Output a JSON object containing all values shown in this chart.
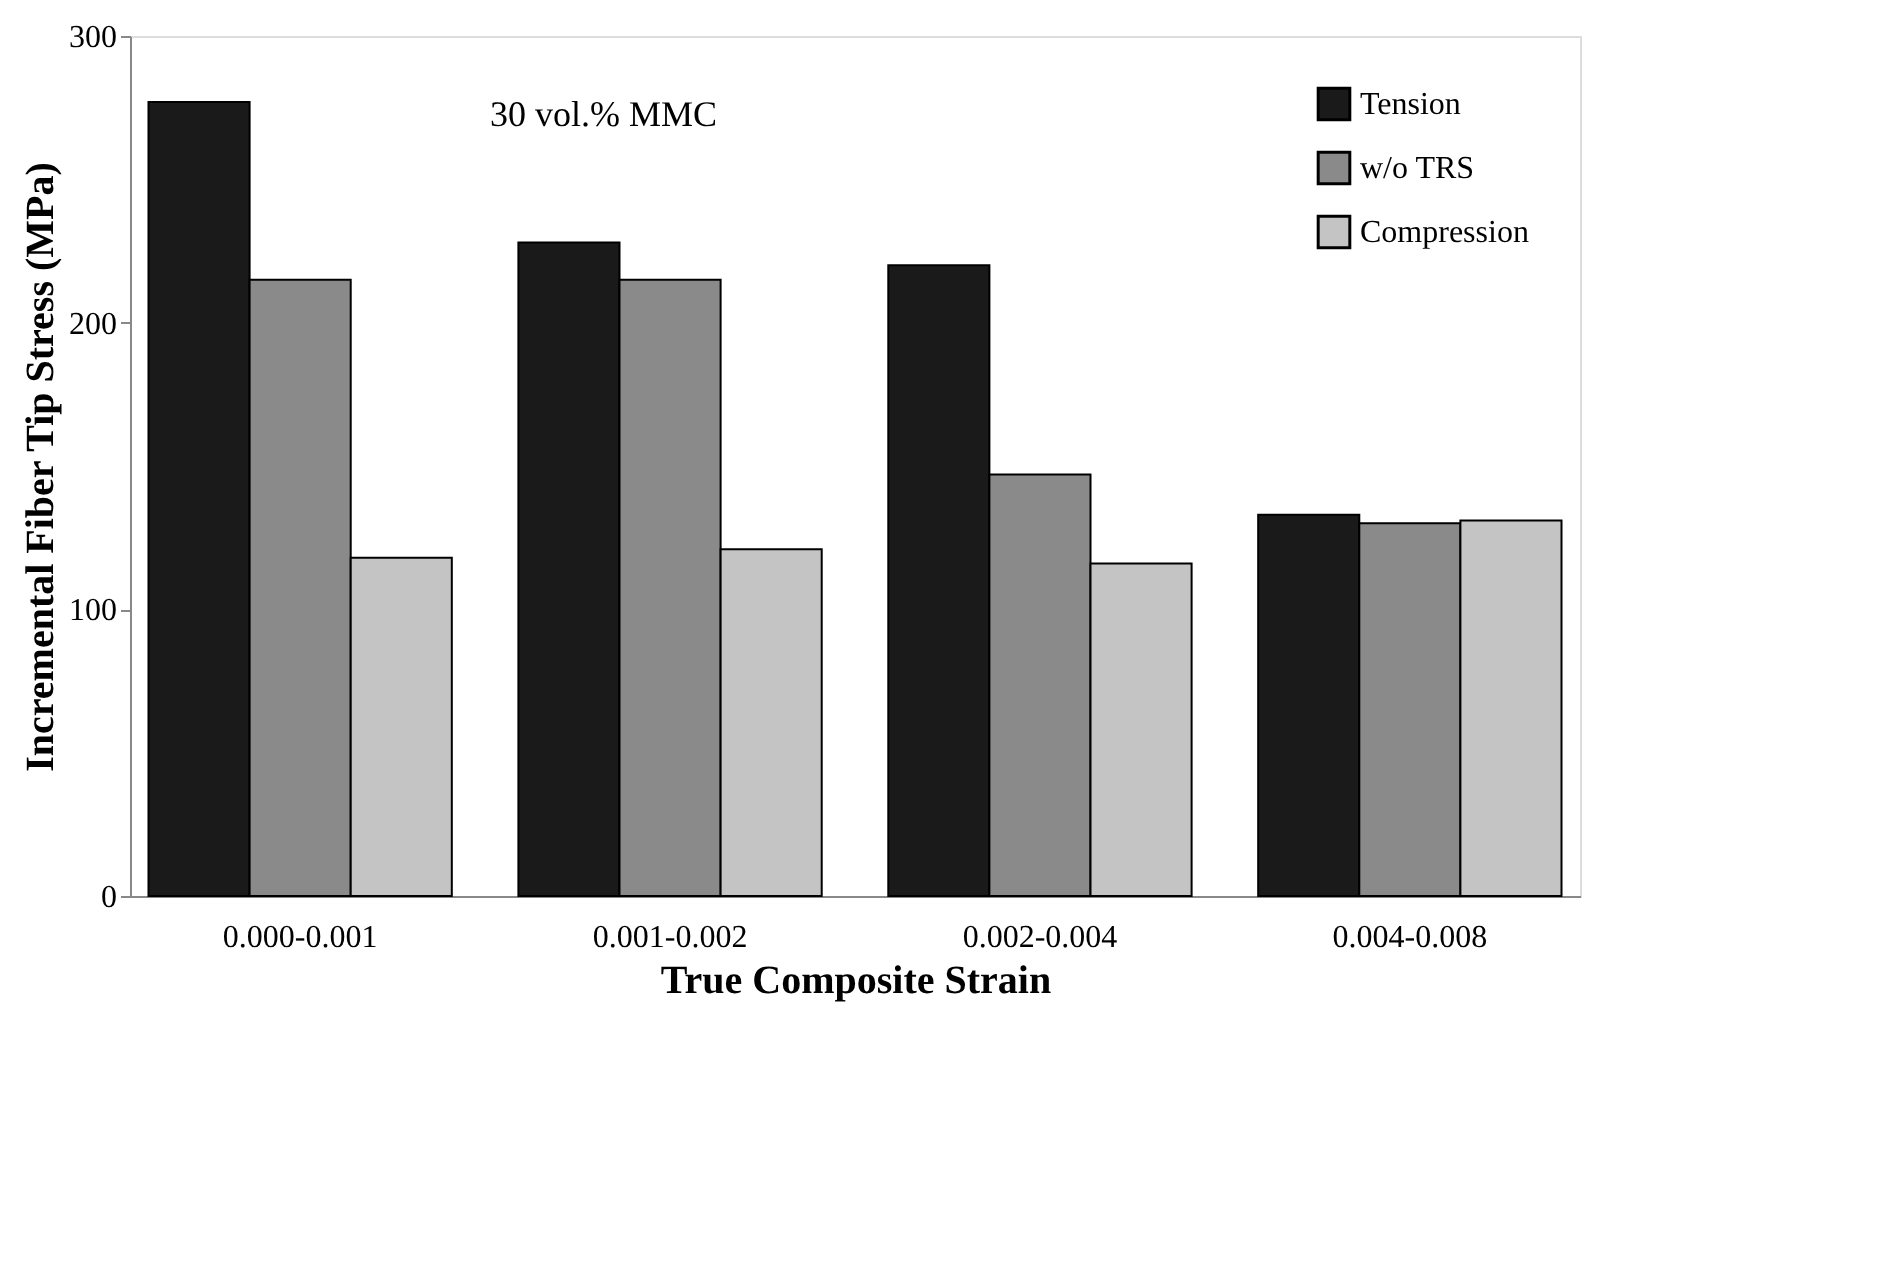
{
  "chart_data": {
    "type": "bar",
    "xlabel": "True Composite Strain",
    "ylabel": "Incremental Fiber Tip Stress (MPa)",
    "categories": [
      "0.000-0.001",
      "0.001-0.002",
      "0.002-0.004",
      "0.004-0.008"
    ],
    "series": [
      {
        "name": "Tension",
        "color": "#1a1a1a",
        "values": [
          277,
          228,
          220,
          133
        ]
      },
      {
        "name": "w/o TRS",
        "color": "#8a8a8a",
        "values": [
          215,
          215,
          147,
          130
        ]
      },
      {
        "name": "Compression",
        "color": "#c4c4c4",
        "values": [
          118,
          121,
          116,
          131
        ]
      }
    ],
    "ylim": [
      0,
      300
    ],
    "yticks": [
      0,
      100,
      200,
      300
    ],
    "grid": false,
    "legend": "top right",
    "annotations": [
      "30 vol.% MMC"
    ]
  }
}
